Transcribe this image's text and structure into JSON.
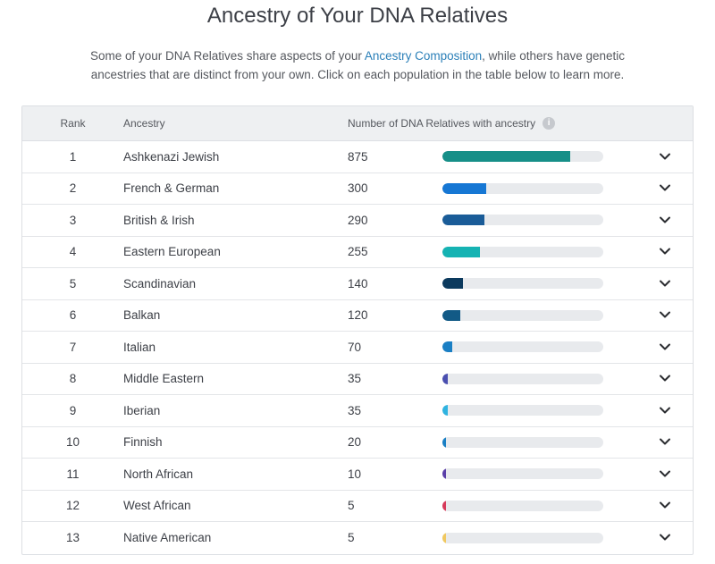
{
  "header": {
    "title": "Ancestry of Your DNA Relatives",
    "subtitle_before": "Some of your DNA Relatives share aspects of your ",
    "subtitle_link": "Ancestry Composition",
    "subtitle_after": ", while others have genetic ancestries that are distinct from your own. Click on each population in the table below to learn more."
  },
  "table": {
    "columns": {
      "rank": "Rank",
      "ancestry": "Ancestry",
      "count": "Number of DNA Relatives with ancestry"
    },
    "max_bar_value": 1100,
    "rows": [
      {
        "rank": "1",
        "ancestry": "Ashkenazi Jewish",
        "count": "875",
        "value": 875,
        "color": "#168f88"
      },
      {
        "rank": "2",
        "ancestry": "French & German",
        "count": "300",
        "value": 300,
        "color": "#1677d4"
      },
      {
        "rank": "3",
        "ancestry": "British & Irish",
        "count": "290",
        "value": 290,
        "color": "#1a5c98"
      },
      {
        "rank": "4",
        "ancestry": "Eastern European",
        "count": "255",
        "value": 255,
        "color": "#15b3b3"
      },
      {
        "rank": "5",
        "ancestry": "Scandinavian",
        "count": "140",
        "value": 140,
        "color": "#0c3a5e"
      },
      {
        "rank": "6",
        "ancestry": "Balkan",
        "count": "120",
        "value": 120,
        "color": "#125a86"
      },
      {
        "rank": "7",
        "ancestry": "Italian",
        "count": "70",
        "value": 70,
        "color": "#1a7fc4"
      },
      {
        "rank": "8",
        "ancestry": "Middle Eastern",
        "count": "35",
        "value": 35,
        "color": "#4a4fb0"
      },
      {
        "rank": "9",
        "ancestry": "Iberian",
        "count": "35",
        "value": 35,
        "color": "#2fb3e0"
      },
      {
        "rank": "10",
        "ancestry": "Finnish",
        "count": "20",
        "value": 20,
        "color": "#1a7fc4"
      },
      {
        "rank": "11",
        "ancestry": "North African",
        "count": "10",
        "value": 10,
        "color": "#5a3fa8"
      },
      {
        "rank": "12",
        "ancestry": "West African",
        "count": "5",
        "value": 5,
        "color": "#d63a5a"
      },
      {
        "rank": "13",
        "ancestry": "Native American",
        "count": "5",
        "value": 5,
        "color": "#f0c860"
      }
    ]
  },
  "icons": {
    "info": "info-icon",
    "expand": "chevron-down-icon"
  }
}
